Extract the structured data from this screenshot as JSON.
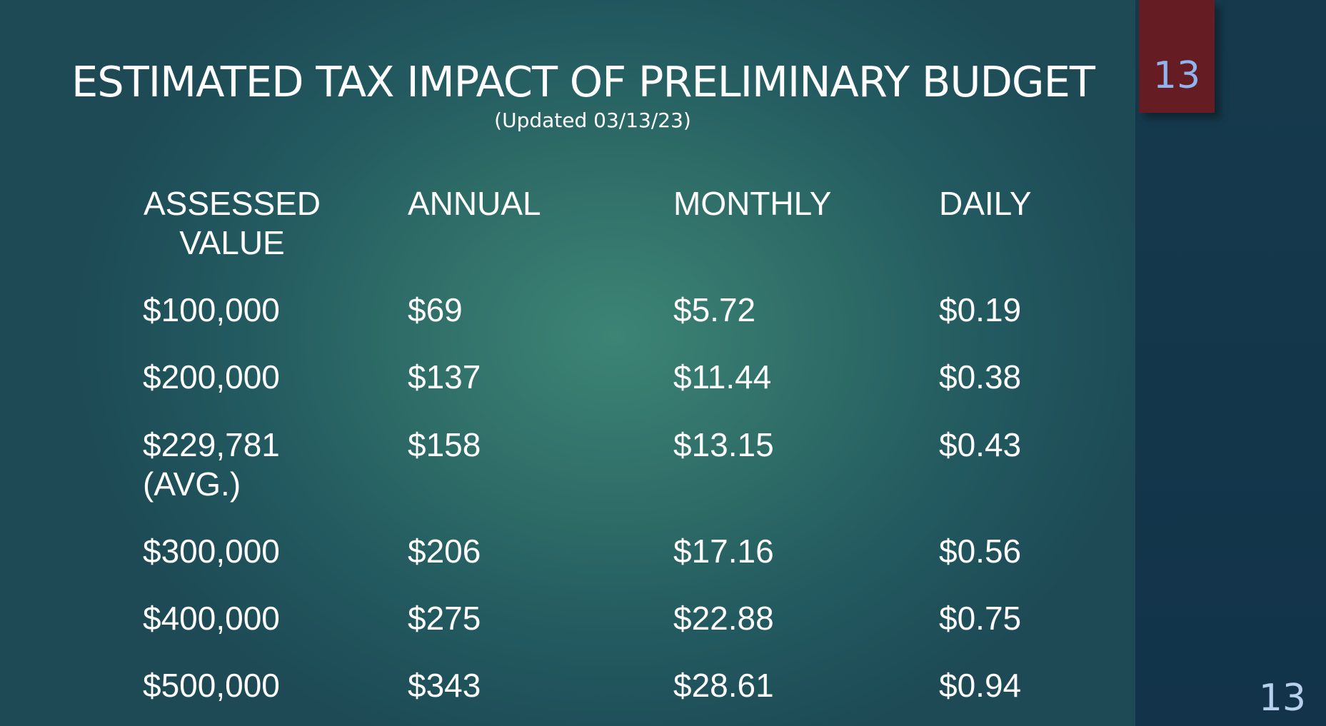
{
  "slide": {
    "title": "ESTIMATED TAX IMPACT OF PRELIMINARY BUDGET",
    "subtitle": "(Updated 03/13/23)",
    "tab_number": "13",
    "corner_number": "13",
    "colors": {
      "background": "#2f6e68",
      "right_band": "#163a4c",
      "tab": "#651c22",
      "tab_number": "#8fb4ee",
      "text": "#ffffff"
    }
  },
  "table": {
    "headers": [
      "ASSESSED VALUE",
      "ANNUAL",
      "MONTHLY",
      "DAILY"
    ],
    "rows": [
      [
        "$100,000",
        "$69",
        "$5.72",
        "$0.19"
      ],
      [
        "$200,000",
        "$137",
        "$11.44",
        "$0.38"
      ],
      [
        "$229,781 (AVG.)",
        "$158",
        "$13.15",
        "$0.43"
      ],
      [
        "$300,000",
        "$206",
        "$17.16",
        "$0.56"
      ],
      [
        "$400,000",
        "$275",
        "$22.88",
        "$0.75"
      ],
      [
        "$500,000",
        "$343",
        "$28.61",
        "$0.94"
      ]
    ]
  }
}
